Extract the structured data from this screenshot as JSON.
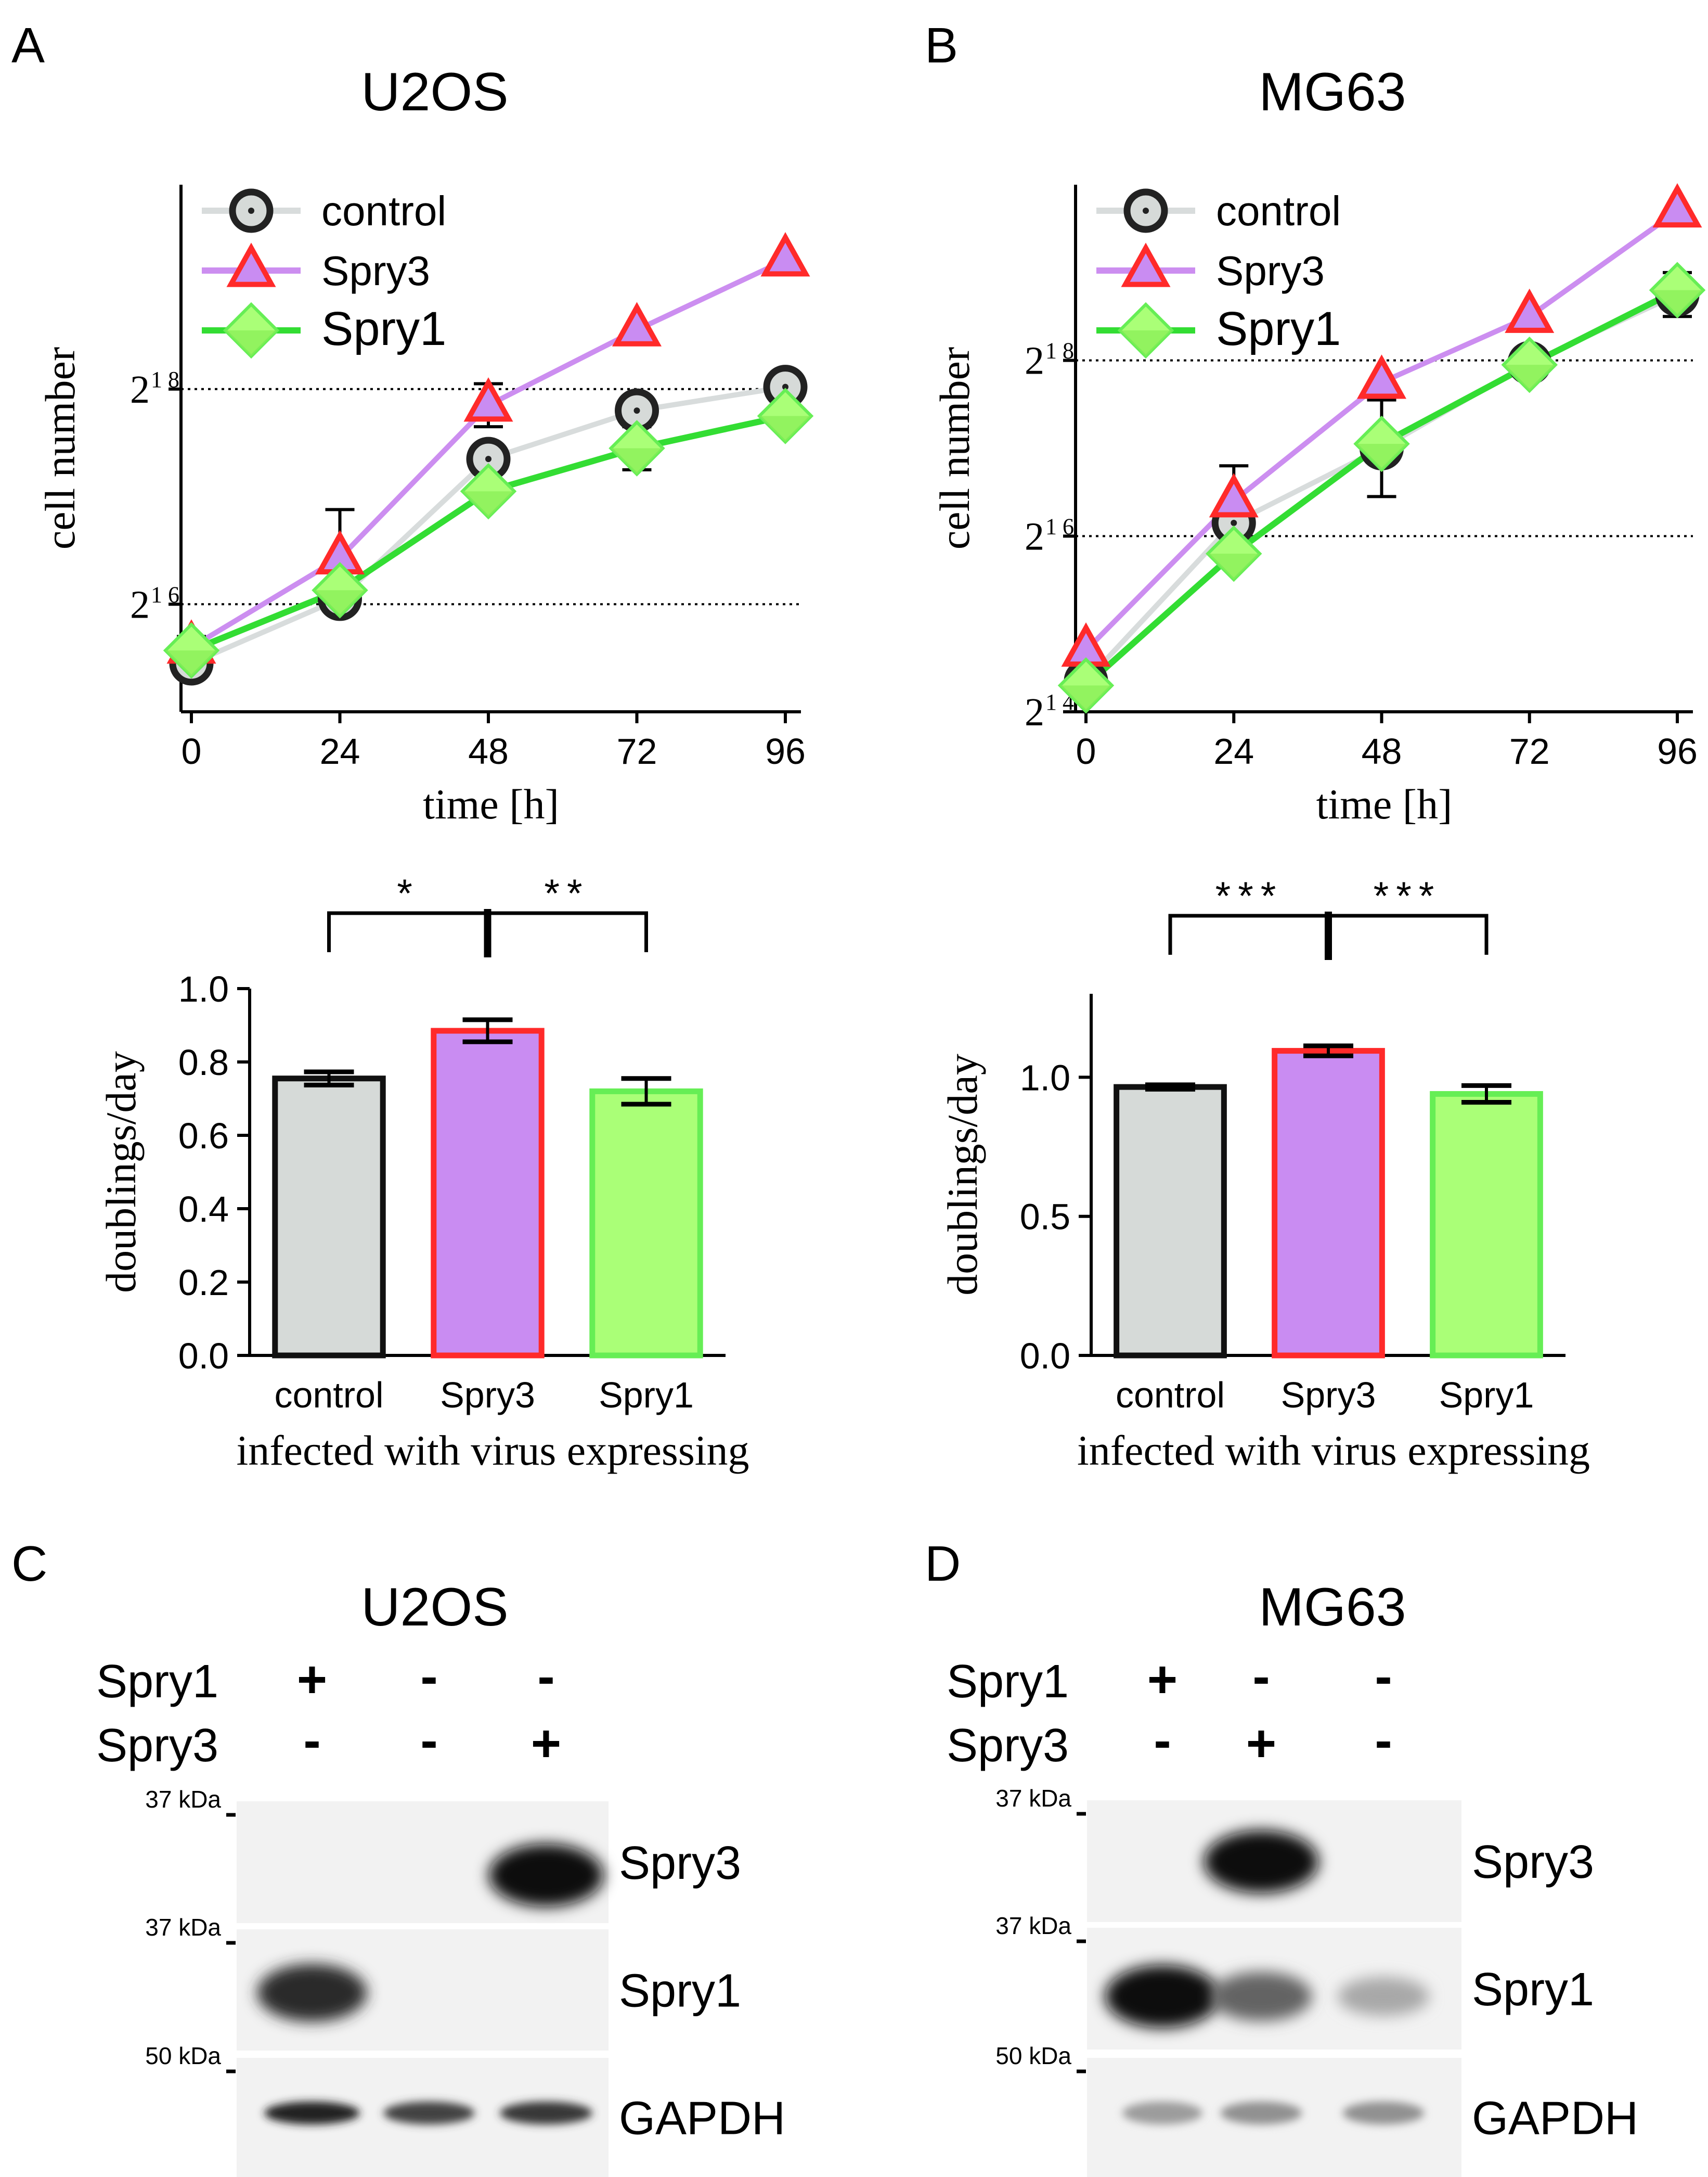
{
  "panels": {
    "A": {
      "letter": "A",
      "title": "U2OS"
    },
    "B": {
      "letter": "B",
      "title": "MG63"
    },
    "C": {
      "letter": "C",
      "title": "U2OS"
    },
    "D": {
      "letter": "D",
      "title": "MG63"
    }
  },
  "colors": {
    "control_line": "#d8dcdc",
    "control_fill": "#d6dad8",
    "spry3_line": "#cc8ef0",
    "spry3_edge": "#ff2a2a",
    "spry3_fill": "#c98cf2",
    "spry1_line": "#33dd33",
    "spry1_edge": "#66ee55",
    "spry1_fill": "#aaff77"
  },
  "chart_data": [
    {
      "id": "lineA",
      "type": "line",
      "xlabel": "time [h]",
      "ylabel": "cell number",
      "yscale": "log2",
      "x": [
        0,
        24,
        48,
        72,
        96
      ],
      "xticks": [
        "0",
        "24",
        "48",
        "72",
        "96"
      ],
      "yticks": [
        {
          "base": "2",
          "exp": "16",
          "value": 16
        },
        {
          "base": "2",
          "exp": "18",
          "value": 18
        }
      ],
      "ylim": [
        15.0,
        19.9
      ],
      "legend": [
        "control",
        "Spry3",
        "Spry1"
      ],
      "series": [
        {
          "name": "control",
          "y": [
            15.45,
            16.05,
            17.35,
            17.8,
            18.02
          ],
          "err": [
            0,
            0.12,
            0,
            0,
            0
          ]
        },
        {
          "name": "Spry3",
          "y": [
            15.6,
            16.43,
            17.85,
            18.55,
            19.2
          ],
          "err": [
            0.1,
            0.45,
            0.2,
            0,
            0
          ]
        },
        {
          "name": "Spry1",
          "y": [
            15.57,
            16.13,
            17.05,
            17.45,
            17.75
          ],
          "err": [
            0,
            0,
            0,
            0.2,
            0
          ]
        }
      ]
    },
    {
      "id": "lineB",
      "type": "line",
      "xlabel": "time [h]",
      "ylabel": "cell number",
      "yscale": "log2",
      "x": [
        0,
        24,
        48,
        72,
        96
      ],
      "xticks": [
        "0",
        "24",
        "48",
        "72",
        "96"
      ],
      "yticks": [
        {
          "base": "2",
          "exp": "14",
          "value": 14
        },
        {
          "base": "2",
          "exp": "16",
          "value": 16
        },
        {
          "base": "2",
          "exp": "18",
          "value": 18
        }
      ],
      "ylim": [
        14.0,
        20.0
      ],
      "legend": [
        "control",
        "Spry3",
        "Spry1"
      ],
      "series": [
        {
          "name": "control",
          "y": [
            14.35,
            16.15,
            17.0,
            17.97,
            18.75
          ],
          "err": [
            0,
            0.15,
            0.55,
            0,
            0.25
          ]
        },
        {
          "name": "Spry3",
          "y": [
            14.7,
            16.4,
            17.75,
            18.5,
            19.7
          ],
          "err": [
            0,
            0.4,
            0,
            0,
            0
          ]
        },
        {
          "name": "Spry1",
          "y": [
            14.3,
            15.8,
            17.05,
            17.95,
            18.8
          ],
          "err": [
            0,
            0,
            0,
            0,
            0
          ]
        }
      ]
    },
    {
      "id": "barA",
      "type": "bar",
      "categories": [
        "control",
        "Spry3",
        "Spry1"
      ],
      "values": [
        0.755,
        0.885,
        0.72
      ],
      "errors": [
        0.018,
        0.03,
        0.035
      ],
      "ylabel": "doublings/day",
      "xlabel": "infected with virus expressing",
      "ylim": [
        0,
        1.0
      ],
      "yticks": [
        "0.0",
        "0.2",
        "0.4",
        "0.6",
        "0.8",
        "1.0"
      ],
      "significance": [
        {
          "pair": [
            "control",
            "Spry3"
          ],
          "label": "*"
        },
        {
          "pair": [
            "Spry3",
            "Spry1"
          ],
          "label": "**"
        }
      ]
    },
    {
      "id": "barB",
      "type": "bar",
      "categories": [
        "control",
        "Spry3",
        "Spry1"
      ],
      "values": [
        0.965,
        1.095,
        0.94
      ],
      "errors": [
        0.008,
        0.018,
        0.03
      ],
      "ylabel": "doublings/day",
      "xlabel": "infected with virus expressing",
      "ylim": [
        0,
        1.3
      ],
      "yticks": [
        "0.0",
        "0.5",
        "1.0"
      ],
      "significance": [
        {
          "pair": [
            "control",
            "Spry3"
          ],
          "label": "***"
        },
        {
          "pair": [
            "Spry3",
            "Spry1"
          ],
          "label": "***"
        }
      ]
    }
  ],
  "blots": {
    "C": {
      "rows": [
        {
          "name": "Spry1",
          "signs": [
            "+",
            "-",
            "-"
          ]
        },
        {
          "name": "Spry3",
          "signs": [
            "-",
            "-",
            "+"
          ]
        }
      ],
      "bands": [
        {
          "label": "Spry3",
          "marker": "37 kDa",
          "intensity": [
            0,
            0,
            1.0
          ]
        },
        {
          "label": "Spry1",
          "marker": "37 kDa",
          "intensity": [
            0.85,
            0,
            0
          ]
        },
        {
          "label": "GAPDH",
          "marker": "50 kDa",
          "intensity": [
            0.9,
            0.75,
            0.8
          ]
        }
      ]
    },
    "D": {
      "rows": [
        {
          "name": "Spry1",
          "signs": [
            "+",
            "-",
            "-"
          ]
        },
        {
          "name": "Spry3",
          "signs": [
            "-",
            "+",
            "-"
          ]
        }
      ],
      "bands": [
        {
          "label": "Spry3",
          "marker": "37 kDa",
          "intensity": [
            0,
            1.0,
            0
          ]
        },
        {
          "label": "Spry1",
          "marker": "37 kDa",
          "intensity": [
            1.0,
            0.6,
            0.3
          ]
        },
        {
          "label": "GAPDH",
          "marker": "50 kDa",
          "intensity": [
            0.35,
            0.4,
            0.4
          ]
        }
      ]
    }
  }
}
